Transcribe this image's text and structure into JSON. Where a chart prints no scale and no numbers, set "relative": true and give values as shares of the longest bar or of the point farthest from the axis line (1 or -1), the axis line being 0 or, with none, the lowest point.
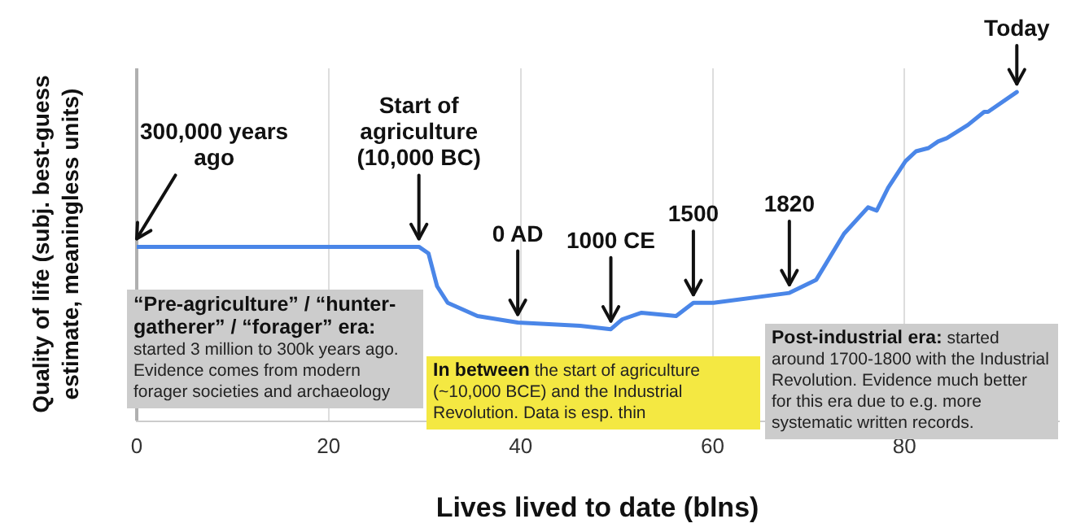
{
  "chart_data": {
    "type": "line",
    "relative": true,
    "xlabel": "Lives lived to date (blns)",
    "ylabel": "Quality of life (subj. best-guess estimate, meaningless units)",
    "xlim": [
      0,
      96
    ],
    "xticks": [
      0,
      20,
      40,
      60,
      80
    ],
    "grid": "x",
    "legend": false,
    "marker": "none",
    "line_style": "solid",
    "x": [
      0,
      29.4,
      30.4,
      31.3,
      32.4,
      35.5,
      39.7,
      46.2,
      49.4,
      50.6,
      52.6,
      56.2,
      58,
      60.1,
      68,
      70.8,
      73.7,
      76.2,
      77.1,
      78.3,
      80.1,
      81.2,
      82.5,
      83.5,
      84.4,
      86.6,
      88.3,
      88.7,
      91.7
    ],
    "series": [
      {
        "color": "#4a86e8",
        "values": [
          0.53,
          0.53,
          0.51,
          0.41,
          0.36,
          0.32,
          0.3,
          0.29,
          0.28,
          0.31,
          0.33,
          0.32,
          0.36,
          0.36,
          0.39,
          0.43,
          0.57,
          0.65,
          0.64,
          0.71,
          0.79,
          0.82,
          0.83,
          0.85,
          0.86,
          0.9,
          0.94,
          0.94,
          1
        ]
      }
    ],
    "annotations": [
      {
        "text": "300,000 years ago",
        "x": 0,
        "y": 0.53
      },
      {
        "text": "Start of agriculture (10,000 BC)",
        "x": 29.4,
        "y": 0.53
      },
      {
        "text": "0 AD",
        "x": 39.7,
        "y": 0.3
      },
      {
        "text": "1000 CE",
        "x": 49.4,
        "y": 0.28
      },
      {
        "text": "1500",
        "x": 58,
        "y": 0.36
      },
      {
        "text": "1820",
        "x": 68,
        "y": 0.39
      },
      {
        "text": "Today",
        "x": 91.7,
        "y": 1
      },
      "“Pre-agriculture” / “hunter-gatherer” / “forager” era:",
      "started 3 million to 300k years ago. Evidence comes from modern forager societies and archaeology",
      "In between",
      "the start of agriculture (~10,000 BCE) and the Industrial Revolution. Data is esp. thin",
      "Post-industrial era:",
      "started around 1700-1800 with the Industrial Revolution. Evidence much better for this era due to e.g. more systematic written records."
    ]
  }
}
